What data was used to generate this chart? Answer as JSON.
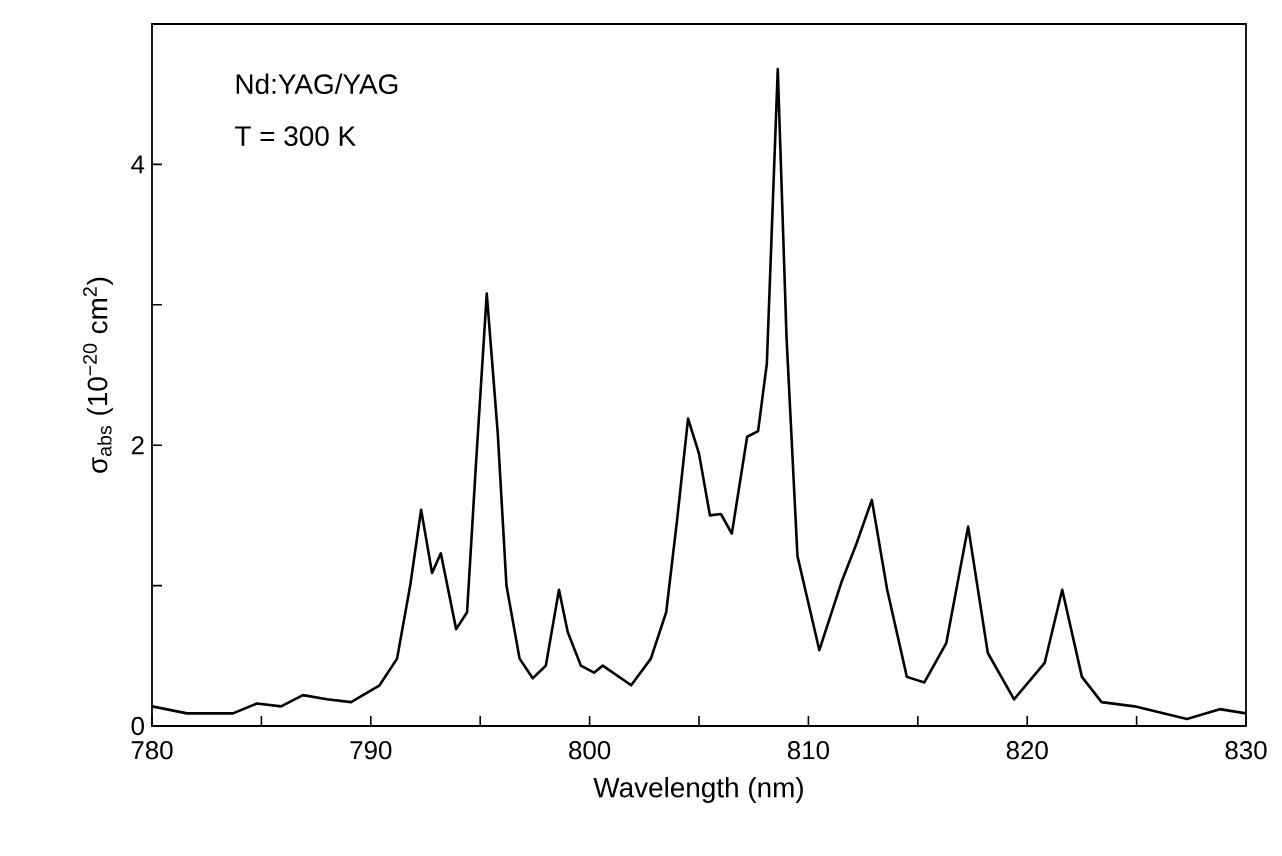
{
  "chart_data": {
    "type": "line",
    "xlabel": "Wavelength (nm)",
    "ylabel": "σ$_{abs}$ (10$^{−20}$ cm$^{2}$)",
    "annotations": [
      "Nd:YAG/YAG",
      "T = 300 K"
    ],
    "xlim": [
      780,
      830
    ],
    "ylim": [
      0,
      5
    ],
    "xticks": [
      780,
      {
        "value": 785,
        "label": null
      },
      790,
      {
        "value": 795,
        "label": null
      },
      800,
      {
        "value": 805,
        "label": null
      },
      810,
      {
        "value": 815,
        "label": null
      },
      820,
      {
        "value": 825,
        "label": null
      },
      830
    ],
    "yticks": [
      0,
      {
        "value": 1,
        "label": null
      },
      2,
      {
        "value": 3,
        "label": null
      },
      4
    ],
    "grid": false,
    "marker": "none",
    "line_style": "solid",
    "series": [
      {
        "color": "#000000",
        "x": [
          780.0,
          781.6,
          783.7,
          784.8,
          785.9,
          786.9,
          788.0,
          789.1,
          790.4,
          791.2,
          791.8,
          792.3,
          792.8,
          793.2,
          793.9,
          794.4,
          794.8,
          795.3,
          795.8,
          796.2,
          796.8,
          797.4,
          798.0,
          798.6,
          799.0,
          799.6,
          800.2,
          800.6,
          801.9,
          802.8,
          803.5,
          804.0,
          804.5,
          805.0,
          805.5,
          806.0,
          806.5,
          807.2,
          807.7,
          808.1,
          808.6,
          809.0,
          809.5,
          810.5,
          811.5,
          812.2,
          812.9,
          813.6,
          814.5,
          815.3,
          816.3,
          817.3,
          818.2,
          819.4,
          820.8,
          821.6,
          822.5,
          823.4,
          824.9,
          827.3,
          828.8,
          830.0
        ],
        "values": [
          0.14,
          0.09,
          0.09,
          0.16,
          0.14,
          0.22,
          0.19,
          0.17,
          0.29,
          0.48,
          1.0,
          1.54,
          1.09,
          1.23,
          0.69,
          0.81,
          1.85,
          3.08,
          2.09,
          1.0,
          0.48,
          0.34,
          0.43,
          0.97,
          0.67,
          0.43,
          0.38,
          0.43,
          0.29,
          0.48,
          0.81,
          1.47,
          2.19,
          1.94,
          1.5,
          1.51,
          1.37,
          2.06,
          2.1,
          2.58,
          4.68,
          2.77,
          1.21,
          0.54,
          1.02,
          1.3,
          1.61,
          0.97,
          0.35,
          0.31,
          0.59,
          1.42,
          0.52,
          0.19,
          0.45,
          0.97,
          0.35,
          0.17,
          0.14,
          0.05,
          0.12,
          0.09
        ]
      }
    ]
  }
}
